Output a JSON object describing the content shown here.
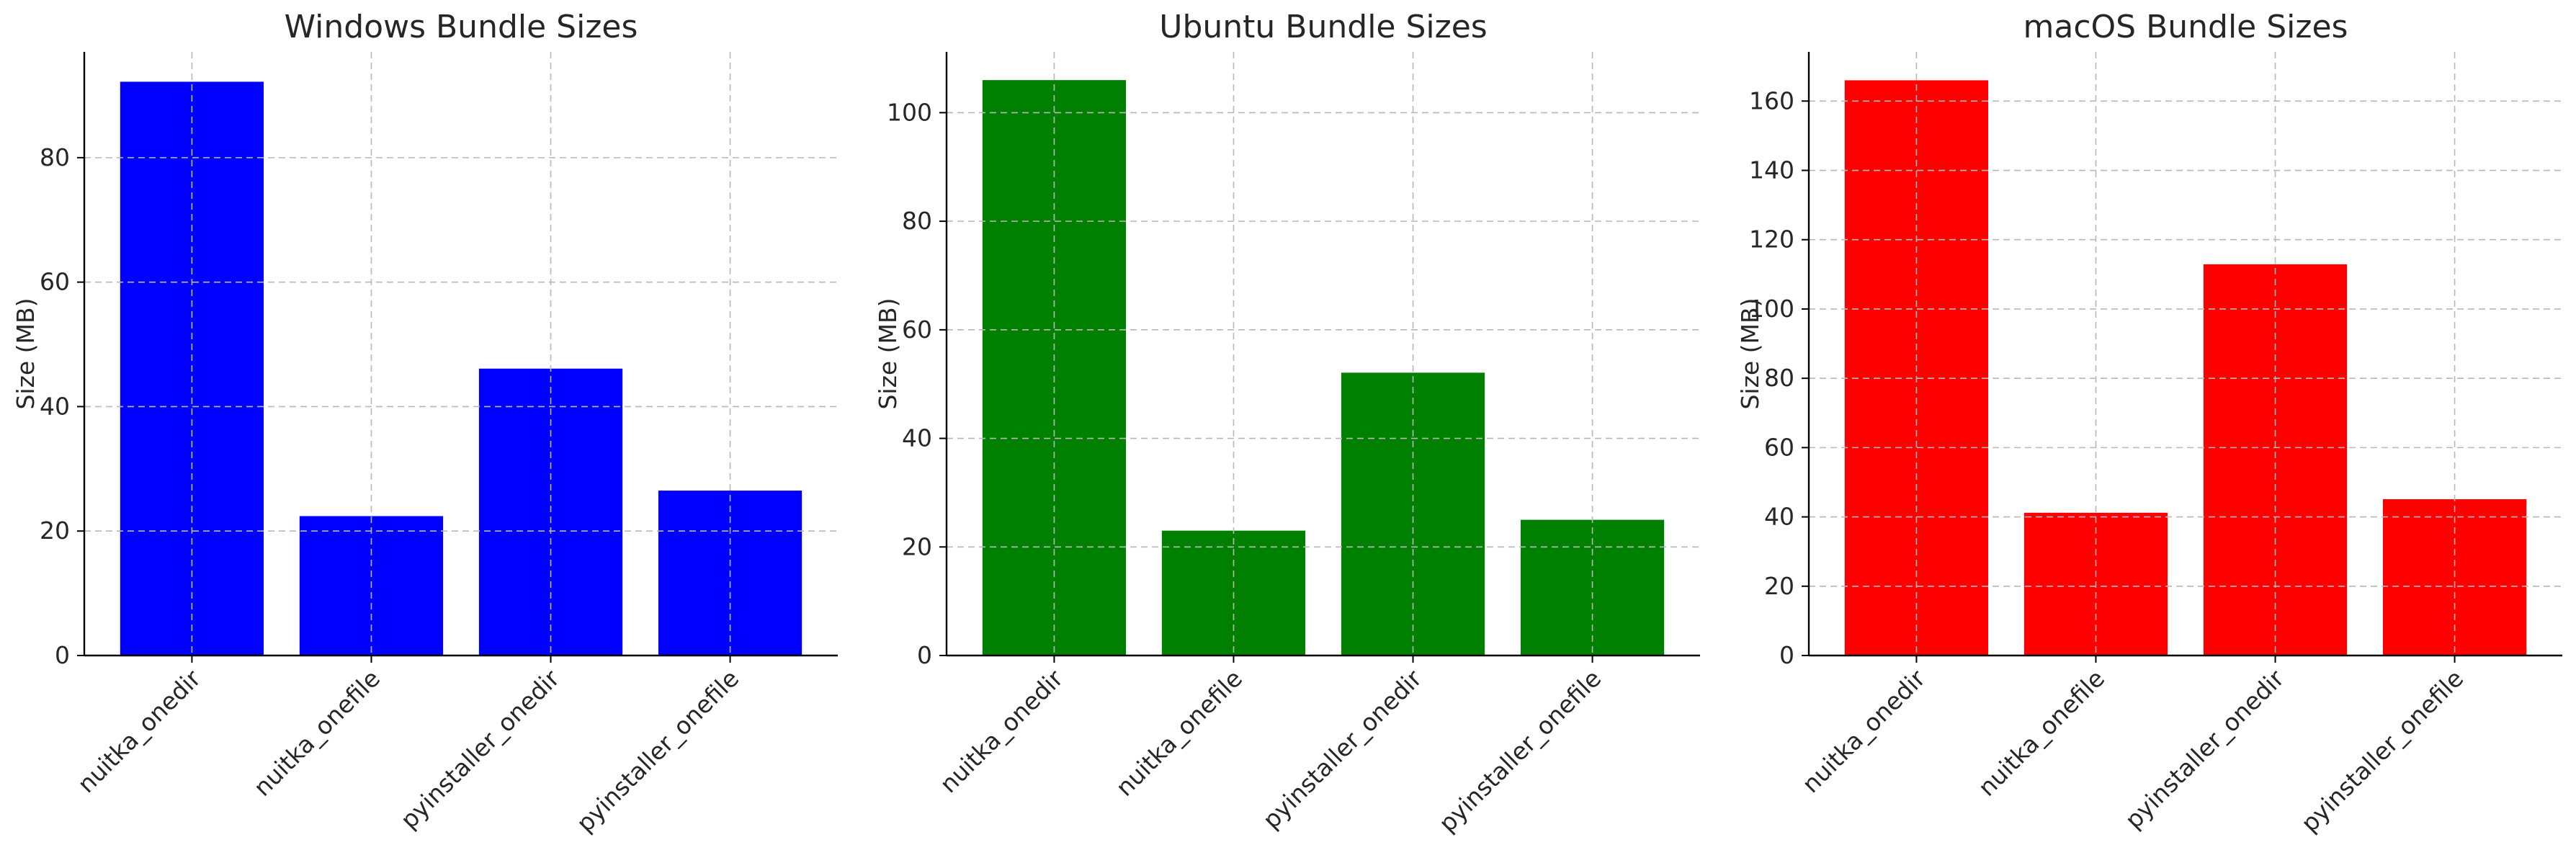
{
  "chart_data": [
    {
      "type": "bar",
      "title": "Windows Bundle Sizes",
      "xlabel": "",
      "ylabel": "Size (MB)",
      "categories": [
        "nuitka_onedir",
        "nuitka_onefile",
        "pyinstaller_onedir",
        "pyinstaller_onefile"
      ],
      "values": [
        92.2,
        22.4,
        46.1,
        26.5
      ],
      "ylim": [
        0,
        97
      ],
      "yticks": [
        0,
        20,
        40,
        60,
        80
      ],
      "color": "#0000ff",
      "grid": true,
      "legend": "none"
    },
    {
      "type": "bar",
      "title": "Ubuntu Bundle Sizes",
      "xlabel": "",
      "ylabel": "Size (MB)",
      "categories": [
        "nuitka_onedir",
        "nuitka_onefile",
        "pyinstaller_onedir",
        "pyinstaller_onefile"
      ],
      "values": [
        106.0,
        23.0,
        52.1,
        25.0
      ],
      "ylim": [
        0,
        111.2
      ],
      "yticks": [
        0,
        20,
        40,
        60,
        80,
        100
      ],
      "color": "#008000",
      "grid": true,
      "legend": "none"
    },
    {
      "type": "bar",
      "title": "macOS Bundle Sizes",
      "xlabel": "",
      "ylabel": "Size (MB)",
      "categories": [
        "nuitka_onedir",
        "nuitka_onefile",
        "pyinstaller_onedir",
        "pyinstaller_onefile"
      ],
      "values": [
        166.0,
        41.2,
        112.9,
        45.1
      ],
      "ylim": [
        0,
        174.2
      ],
      "yticks": [
        0,
        20,
        40,
        60,
        80,
        100,
        120,
        140,
        160
      ],
      "color": "#ff0000",
      "grid": true,
      "legend": "none"
    }
  ]
}
